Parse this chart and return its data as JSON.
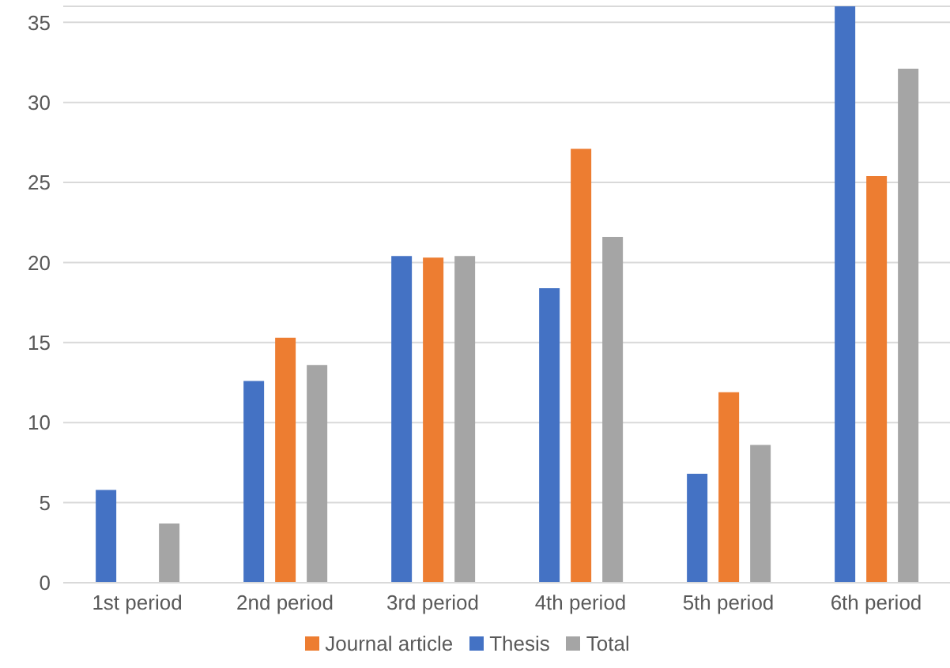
{
  "chart_data": {
    "type": "bar",
    "categories": [
      "1st period",
      "2nd period",
      "3rd period",
      "4th period",
      "5th period",
      "6th period"
    ],
    "series": [
      {
        "name": "Thesis",
        "color": "#4472c4",
        "values": [
          5.8,
          12.6,
          20.4,
          18.4,
          6.8,
          36.0
        ]
      },
      {
        "name": "Journal article",
        "color": "#ed7d31",
        "values": [
          0,
          15.3,
          20.3,
          27.1,
          11.9,
          25.4
        ]
      },
      {
        "name": "Total",
        "color": "#a5a5a5",
        "values": [
          3.7,
          13.6,
          20.4,
          21.6,
          8.6,
          32.1
        ]
      }
    ],
    "ylim": [
      0,
      36
    ],
    "yticks": [
      0,
      5,
      10,
      15,
      20,
      25,
      30,
      35
    ],
    "grid": "y",
    "legend": "bottom"
  }
}
